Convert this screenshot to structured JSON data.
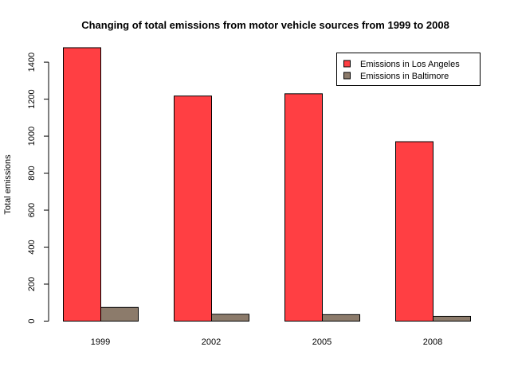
{
  "chart_data": {
    "type": "bar",
    "title": "Changing of total emissions from motor vehicle sources from 1999 to 2008",
    "xlabel": "",
    "ylabel": "Total emissions",
    "categories": [
      "1999",
      "2002",
      "2005",
      "2008"
    ],
    "series": [
      {
        "name": "Emissions in Los Angeles",
        "values": [
          1478,
          1217,
          1229,
          970
        ],
        "color": "#ff3f43"
      },
      {
        "name": "Emissions in Baltimore",
        "values": [
          74,
          37,
          35,
          26
        ],
        "color": "#8c7b6b"
      }
    ],
    "yticks": [
      0,
      200,
      400,
      600,
      800,
      1000,
      1200,
      1400
    ],
    "ylim": [
      0,
      1480
    ],
    "grid": false,
    "legend_position": "top-right"
  }
}
